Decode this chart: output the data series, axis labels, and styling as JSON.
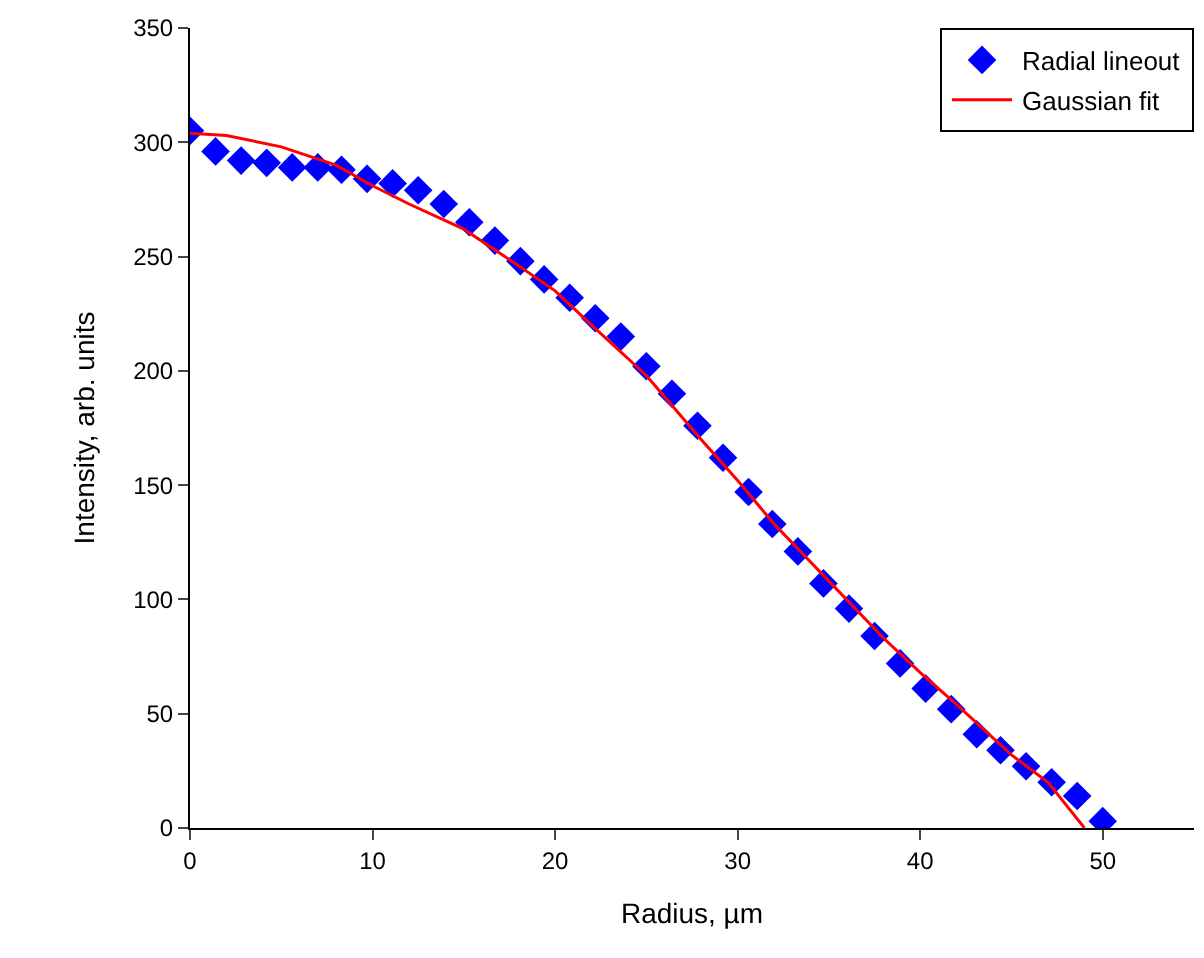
{
  "chart_data": {
    "type": "scatter",
    "xlabel": "Radius, µm",
    "ylabel": "Intensity, arb. units",
    "xlim": [
      0,
      55
    ],
    "xticks": [
      0,
      10,
      20,
      30,
      40,
      50
    ],
    "ylim": [
      0,
      350
    ],
    "yticks": [
      0,
      50,
      100,
      150,
      200,
      250,
      300,
      350
    ],
    "legend": "top right",
    "series": [
      {
        "name": "Radial lineout",
        "marker": "diamond",
        "color": "#0000ff",
        "x": [
          0,
          1.4,
          2.8,
          4.2,
          5.6,
          7.0,
          8.3,
          9.7,
          11.1,
          12.5,
          13.9,
          15.3,
          16.7,
          18.1,
          19.4,
          20.8,
          22.2,
          23.6,
          25,
          26.4,
          27.8,
          29.2,
          30.6,
          31.9,
          33.3,
          34.7,
          36.1,
          37.5,
          38.9,
          40.3,
          41.7,
          43.1,
          44.4,
          45.8,
          47.2,
          48.6,
          50
        ],
        "values": [
          305,
          296,
          292,
          291,
          289,
          289,
          288,
          284,
          282,
          279,
          273,
          265,
          257,
          248,
          240,
          232,
          223,
          215,
          202,
          190,
          176,
          162,
          147,
          133,
          121,
          107,
          96,
          84,
          72,
          61,
          52,
          41,
          34,
          27,
          20,
          14,
          3
        ]
      },
      {
        "name": "Gaussian fit",
        "type": "line",
        "line_style": "solid",
        "color": "#ff0000",
        "x": [
          0,
          2,
          5,
          8,
          10,
          12,
          15,
          18,
          20,
          22,
          25,
          28,
          30,
          32,
          35,
          38,
          40,
          42,
          45,
          47,
          48,
          49
        ],
        "values": [
          304,
          303,
          298,
          290,
          281,
          273,
          262,
          246,
          235,
          220,
          198,
          170,
          152,
          133,
          108,
          83,
          68,
          54,
          32,
          20,
          10,
          0
        ]
      }
    ]
  }
}
